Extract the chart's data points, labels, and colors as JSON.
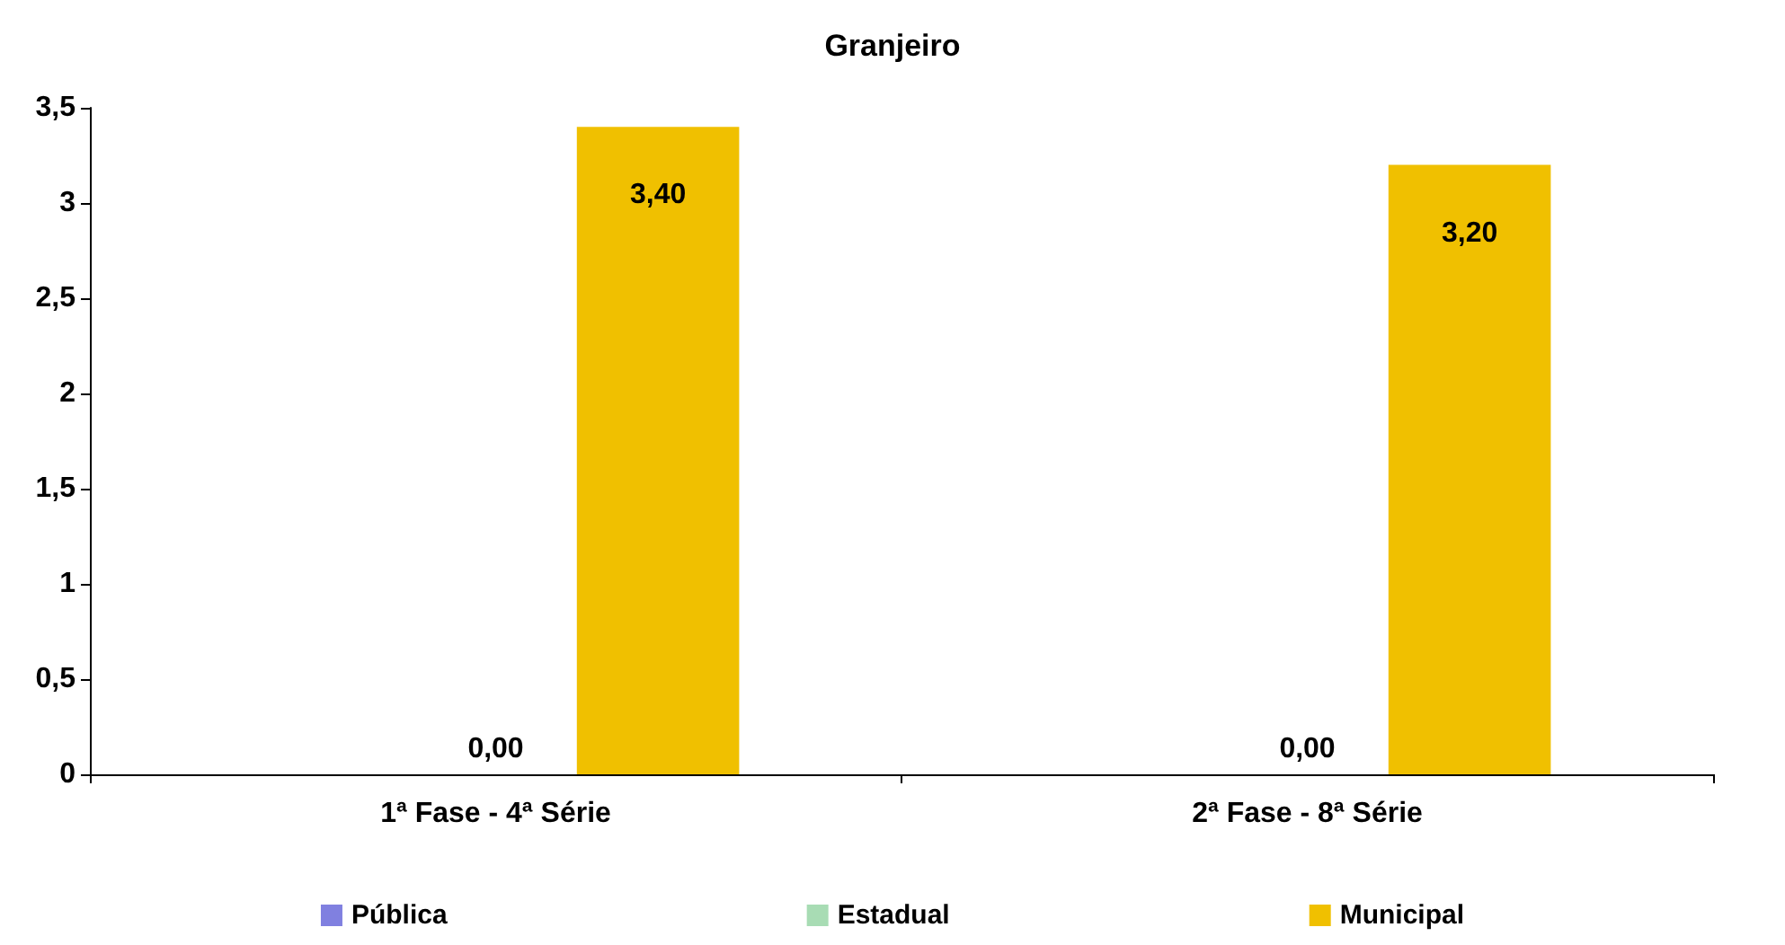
{
  "chart_data": {
    "type": "bar",
    "title": "Granjeiro",
    "categories": [
      "1ª Fase - 4ª Série",
      "2ª Fase - 8ª Série"
    ],
    "series": [
      {
        "name": "Pública",
        "color": "#8080e0",
        "values": [
          null,
          null
        ]
      },
      {
        "name": "Estadual",
        "color": "#a8dcb4",
        "values": [
          0,
          0
        ],
        "value_labels": [
          "0,00",
          "0,00"
        ]
      },
      {
        "name": "Municipal",
        "color": "#f0c000",
        "values": [
          3.4,
          3.2
        ],
        "value_labels": [
          "3,40",
          "3,20"
        ]
      }
    ],
    "ylim": [
      0,
      3.5
    ],
    "yticks": [
      0,
      {
        "value": 0.5,
        "label": "0,5"
      },
      1,
      {
        "value": 1.5,
        "label": "1,5"
      },
      2,
      {
        "value": 2.5,
        "label": "2,5"
      },
      3,
      {
        "value": 3.5,
        "label": "3,5"
      }
    ],
    "grid": false,
    "legend": "bottom"
  }
}
